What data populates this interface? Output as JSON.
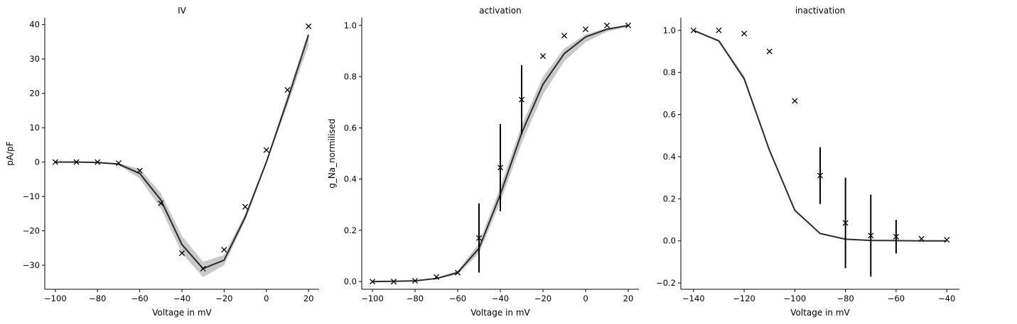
{
  "chart_data": [
    {
      "type": "line",
      "title": "IV",
      "xlabel": "Voltage in mV",
      "ylabel": "pA/pF",
      "xlim": [
        -105,
        25
      ],
      "ylim": [
        -37,
        42
      ],
      "xticks": [
        -100,
        -80,
        -60,
        -40,
        -20,
        0,
        20
      ],
      "yticks": [
        -30,
        -20,
        -10,
        0,
        10,
        20,
        30,
        40
      ],
      "grid": false,
      "fit": {
        "x": [
          -100,
          -90,
          -80,
          -70,
          -60,
          -50,
          -40,
          -30,
          -20,
          -10,
          0,
          10,
          20
        ],
        "y": [
          0,
          0,
          -0.1,
          -0.6,
          -3.3,
          -11,
          -24,
          -31,
          -28.5,
          -16,
          0,
          18,
          37
        ],
        "band_lower": [
          0,
          0,
          -0.2,
          -0.9,
          -4.8,
          -13.5,
          -26.5,
          -33.5,
          -30,
          -17,
          -0.5,
          16.5,
          34
        ],
        "band_upper": [
          0,
          0,
          0,
          -0.3,
          -2,
          -9,
          -21.5,
          -29,
          -27,
          -15,
          0.5,
          19.5,
          38
        ]
      },
      "points": {
        "x": [
          -100,
          -90,
          -80,
          -70,
          -60,
          -50,
          -40,
          -30,
          -20,
          -10,
          0,
          10,
          20
        ],
        "y": [
          0,
          0,
          0,
          -0.3,
          -2.5,
          -12,
          -26.5,
          -31,
          -25.5,
          -13,
          3.5,
          21,
          39.5
        ],
        "yerr": [
          0,
          0,
          0,
          0,
          0,
          0,
          0,
          0,
          0,
          0,
          0,
          0,
          0
        ]
      }
    },
    {
      "type": "line",
      "title": "activation",
      "xlabel": "Voltage in mV",
      "ylabel": "g_Na_normilised",
      "xlim": [
        -105,
        25
      ],
      "ylim": [
        -0.03,
        1.03
      ],
      "xticks": [
        -100,
        -80,
        -60,
        -40,
        -20,
        0,
        20
      ],
      "yticks": [
        0.0,
        0.2,
        0.4,
        0.6,
        0.8,
        1.0
      ],
      "grid": false,
      "fit": {
        "x": [
          -100,
          -90,
          -80,
          -70,
          -60,
          -50,
          -40,
          -30,
          -20,
          -10,
          0,
          10,
          20
        ],
        "y": [
          0,
          0.001,
          0.003,
          0.012,
          0.035,
          0.13,
          0.34,
          0.58,
          0.77,
          0.89,
          0.955,
          0.985,
          1.0
        ],
        "band_lower": [
          0,
          0,
          0.002,
          0.009,
          0.028,
          0.11,
          0.31,
          0.54,
          0.73,
          0.86,
          0.935,
          0.975,
          0.995
        ],
        "band_upper": [
          0.001,
          0.002,
          0.005,
          0.015,
          0.042,
          0.15,
          0.37,
          0.61,
          0.8,
          0.91,
          0.965,
          0.99,
          1.0
        ]
      },
      "points": {
        "x": [
          -100,
          -90,
          -80,
          -70,
          -60,
          -50,
          -40,
          -30,
          -20,
          -10,
          0,
          10,
          20
        ],
        "y": [
          0,
          0,
          0.003,
          0.018,
          0.035,
          0.17,
          0.445,
          0.71,
          0.88,
          0.96,
          0.985,
          1.0,
          1.0
        ],
        "yerr": [
          0,
          0,
          0,
          0,
          0,
          0.135,
          0.17,
          0.135,
          0,
          0,
          0,
          0,
          0
        ]
      }
    },
    {
      "type": "line",
      "title": "inactivation",
      "xlabel": "",
      "ylabel": "",
      "xlim": [
        -145,
        -35
      ],
      "ylim": [
        -0.23,
        1.06
      ],
      "xticks": [
        -140,
        -120,
        -100,
        -80,
        -60,
        -40
      ],
      "yticks": [
        -0.2,
        0.0,
        0.2,
        0.4,
        0.6,
        0.8,
        1.0
      ],
      "grid": false,
      "xlabel_shown": "Voltage in mV",
      "fit": {
        "x": [
          -140,
          -130,
          -120,
          -110,
          -100,
          -90,
          -80,
          -70,
          -60,
          -50,
          -40
        ],
        "y": [
          1.0,
          0.95,
          0.77,
          0.43,
          0.145,
          0.035,
          0.008,
          0.002,
          0.001,
          0.0,
          0.0
        ],
        "band_lower": [
          1.0,
          0.945,
          0.76,
          0.425,
          0.14,
          0.033,
          0.007,
          0.002,
          0.001,
          0.0,
          0.0
        ],
        "band_upper": [
          1.0,
          0.955,
          0.785,
          0.44,
          0.15,
          0.037,
          0.009,
          0.003,
          0.001,
          0.0,
          0.0
        ]
      },
      "points": {
        "x": [
          -140,
          -130,
          -120,
          -110,
          -100,
          -90,
          -80,
          -70,
          -60,
          -50,
          -40
        ],
        "y": [
          1.0,
          1.0,
          0.985,
          0.9,
          0.665,
          0.31,
          0.085,
          0.025,
          0.02,
          0.01,
          0.005
        ],
        "yerr": [
          0,
          0,
          0,
          0,
          0,
          0.135,
          0.215,
          0.195,
          0.08,
          0,
          0
        ]
      }
    }
  ]
}
